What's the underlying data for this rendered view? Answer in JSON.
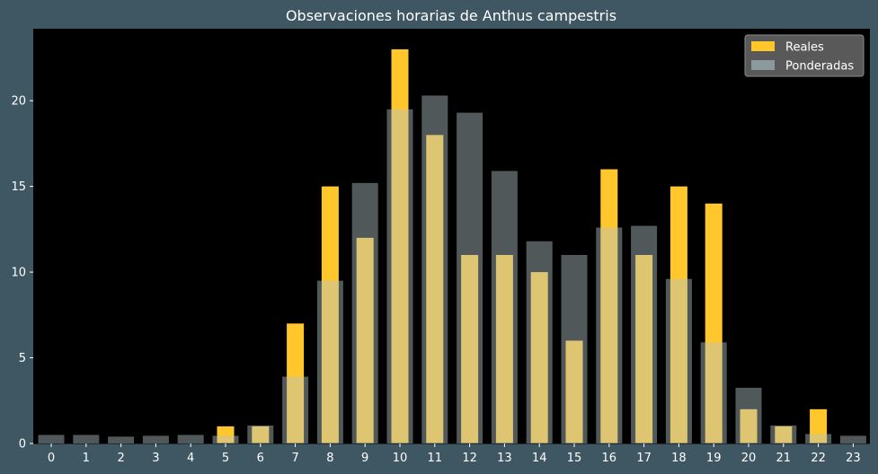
{
  "chart_data": {
    "type": "bar",
    "title": "Observaciones horarias de Anthus campestris",
    "xlabel": "",
    "ylabel": "",
    "categories": [
      "0",
      "1",
      "2",
      "3",
      "4",
      "5",
      "6",
      "7",
      "8",
      "9",
      "10",
      "11",
      "12",
      "13",
      "14",
      "15",
      "16",
      "17",
      "18",
      "19",
      "20",
      "21",
      "22",
      "23"
    ],
    "series": [
      {
        "name": "Reales",
        "color": "#ffc72c",
        "values": [
          0,
          0,
          0,
          0,
          0,
          1,
          1,
          7,
          15,
          12,
          23,
          18,
          11,
          11,
          10,
          6,
          16,
          11,
          15,
          14,
          2,
          1,
          2,
          0
        ]
      },
      {
        "name": "Ponderadas",
        "color": "#b4c4c8",
        "opacity": 0.45,
        "values": [
          0.5,
          0.5,
          0.4,
          0.45,
          0.5,
          0.45,
          1.05,
          3.9,
          9.5,
          15.2,
          19.5,
          20.3,
          19.3,
          15.9,
          11.8,
          11.0,
          12.6,
          12.7,
          9.6,
          5.9,
          3.25,
          1.05,
          0.55,
          0.45
        ]
      }
    ],
    "ylim": [
      0,
      24.2
    ],
    "yticks": [
      0,
      5,
      10,
      15,
      20
    ],
    "grid": false,
    "legend_position": "top-right",
    "background": "#000000",
    "figure_background": "#3f5663"
  }
}
